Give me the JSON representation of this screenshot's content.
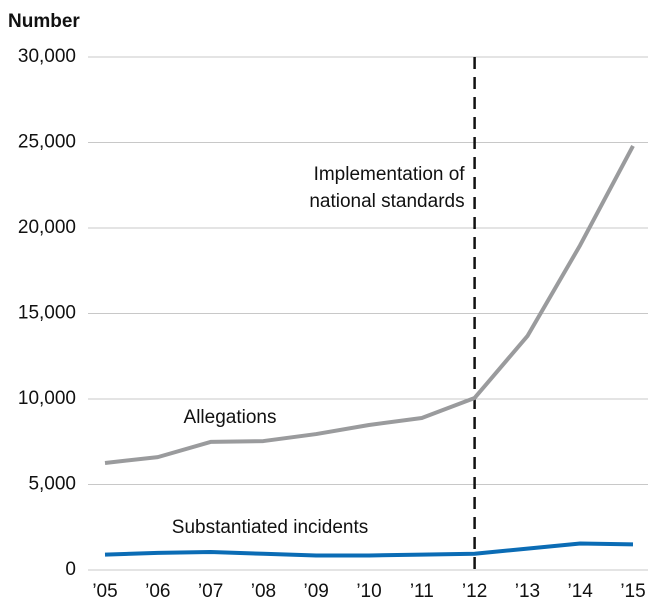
{
  "chart_data": {
    "type": "line",
    "y_label": "Number",
    "categories": [
      "’05",
      "’06",
      "’07",
      "’08",
      "’09",
      "’10",
      "’11",
      "’12",
      "’13",
      "’14",
      "’15"
    ],
    "series": [
      {
        "name": "Allegations",
        "color": "#9a9b9d",
        "values": [
          6260,
          6600,
          7490,
          7540,
          7950,
          8480,
          8890,
          10060,
          13680,
          19000,
          24800
        ]
      },
      {
        "name": "Substantiated incidents",
        "color": "#0b6cb5",
        "values": [
          900,
          1000,
          1050,
          950,
          850,
          850,
          900,
          950,
          1250,
          1550,
          1500
        ]
      }
    ],
    "ylim": [
      0,
      30000
    ],
    "yticks": [
      0,
      {
        "value": 5000,
        "label": "5,000"
      },
      {
        "value": 10000,
        "label": "10,000"
      },
      {
        "value": 15000,
        "label": "15,000"
      },
      {
        "value": 20000,
        "label": "20,000"
      },
      {
        "value": 25000,
        "label": "25,000"
      },
      {
        "value": 30000,
        "label": "30,000"
      }
    ],
    "grid": true,
    "marker": {
      "category": "’12",
      "label": [
        "Implementation of",
        "national standards"
      ]
    }
  }
}
